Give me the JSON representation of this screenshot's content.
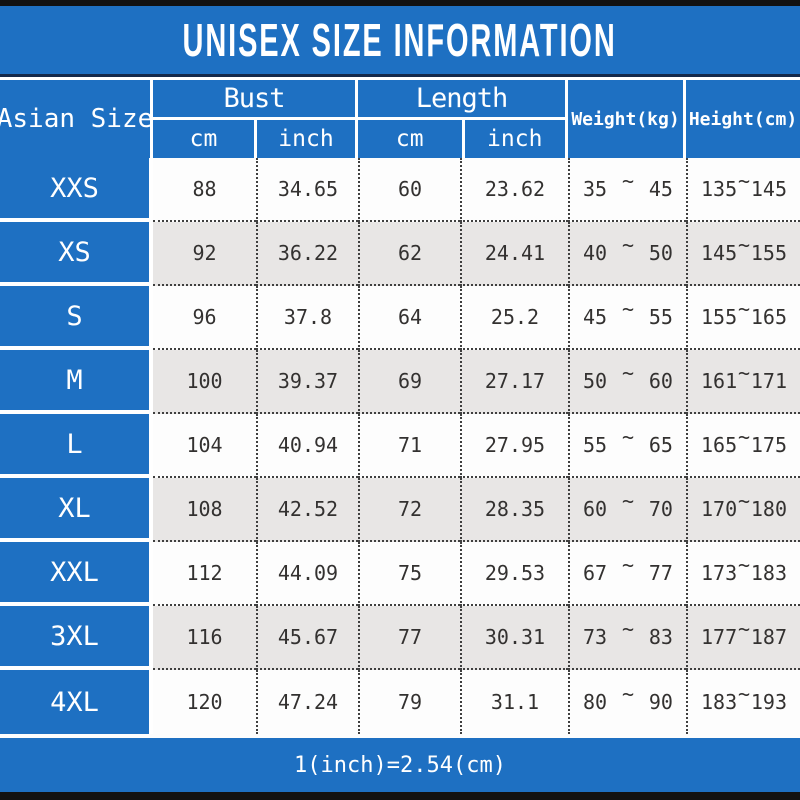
{
  "title": "UNISEX SIZE INFORMATION",
  "table": {
    "corner_header": "Asian Size",
    "groups": {
      "bust": "Bust",
      "length": "Length"
    },
    "sub_headers": {
      "bust_cm": "cm",
      "bust_inch": "inch",
      "length_cm": "cm",
      "length_inch": "inch"
    },
    "weight_header": "Weight(kg)",
    "height_header": "Height(cm)",
    "tilde": "~",
    "rows": [
      {
        "size": "XXS",
        "bust_cm": "88",
        "bust_inch": "34.65",
        "length_cm": "60",
        "length_inch": "23.62",
        "weight_min": "35",
        "weight_max": "45",
        "height_min": "135",
        "height_max": "145"
      },
      {
        "size": "XS",
        "bust_cm": "92",
        "bust_inch": "36.22",
        "length_cm": "62",
        "length_inch": "24.41",
        "weight_min": "40",
        "weight_max": "50",
        "height_min": "145",
        "height_max": "155"
      },
      {
        "size": "S",
        "bust_cm": "96",
        "bust_inch": "37.8",
        "length_cm": "64",
        "length_inch": "25.2",
        "weight_min": "45",
        "weight_max": "55",
        "height_min": "155",
        "height_max": "165"
      },
      {
        "size": "M",
        "bust_cm": "100",
        "bust_inch": "39.37",
        "length_cm": "69",
        "length_inch": "27.17",
        "weight_min": "50",
        "weight_max": "60",
        "height_min": "161",
        "height_max": "171"
      },
      {
        "size": "L",
        "bust_cm": "104",
        "bust_inch": "40.94",
        "length_cm": "71",
        "length_inch": "27.95",
        "weight_min": "55",
        "weight_max": "65",
        "height_min": "165",
        "height_max": "175"
      },
      {
        "size": "XL",
        "bust_cm": "108",
        "bust_inch": "42.52",
        "length_cm": "72",
        "length_inch": "28.35",
        "weight_min": "60",
        "weight_max": "70",
        "height_min": "170",
        "height_max": "180"
      },
      {
        "size": "XXL",
        "bust_cm": "112",
        "bust_inch": "44.09",
        "length_cm": "75",
        "length_inch": "29.53",
        "weight_min": "67",
        "weight_max": "77",
        "height_min": "173",
        "height_max": "183"
      },
      {
        "size": "3XL",
        "bust_cm": "116",
        "bust_inch": "45.67",
        "length_cm": "77",
        "length_inch": "30.31",
        "weight_min": "73",
        "weight_max": "83",
        "height_min": "177",
        "height_max": "187"
      },
      {
        "size": "4XL",
        "bust_cm": "120",
        "bust_inch": "47.24",
        "length_cm": "79",
        "length_inch": "31.1",
        "weight_min": "80",
        "weight_max": "90",
        "height_min": "183",
        "height_max": "193"
      }
    ]
  },
  "footer": {
    "note": "1(inch)=2.54(cm)"
  },
  "colors": {
    "blue": "#1e70c2",
    "navy_line": "#14294a",
    "row_alt": "#e8e6e5",
    "row_base": "#fdfdfd",
    "text_dark": "#333130",
    "bar_black": "#121212",
    "grid_dot": "#3f3f3f"
  },
  "chart_data": {
    "type": "table",
    "title": "UNISEX SIZE INFORMATION",
    "columns": [
      "Asian Size",
      "Bust cm",
      "Bust inch",
      "Length cm",
      "Length inch",
      "Weight(kg)",
      "Height(cm)"
    ],
    "rows": [
      [
        "XXS",
        88,
        34.65,
        60,
        23.62,
        "35 ~ 45",
        "135 ~ 145"
      ],
      [
        "XS",
        92,
        36.22,
        62,
        24.41,
        "40 ~ 50",
        "145 ~ 155"
      ],
      [
        "S",
        96,
        37.8,
        64,
        25.2,
        "45 ~ 55",
        "155 ~ 165"
      ],
      [
        "M",
        100,
        39.37,
        69,
        27.17,
        "50 ~ 60",
        "161 ~ 171"
      ],
      [
        "L",
        104,
        40.94,
        71,
        27.95,
        "55 ~ 65",
        "165 ~ 175"
      ],
      [
        "XL",
        108,
        42.52,
        72,
        28.35,
        "60 ~ 70",
        "170 ~ 180"
      ],
      [
        "XXL",
        112,
        44.09,
        75,
        29.53,
        "67 ~ 77",
        "173 ~ 183"
      ],
      [
        "3XL",
        116,
        45.67,
        77,
        30.31,
        "73 ~ 83",
        "177 ~ 187"
      ],
      [
        "4XL",
        120,
        47.24,
        79,
        31.1,
        "80 ~ 90",
        "183 ~ 193"
      ]
    ],
    "note": "1(inch)=2.54(cm)"
  }
}
